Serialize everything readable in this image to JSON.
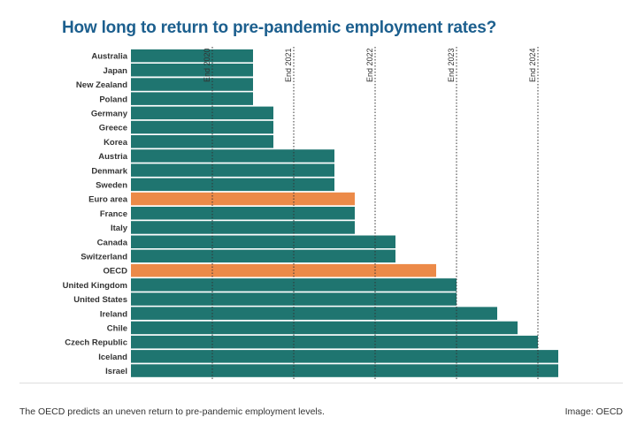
{
  "title": "How long to return to pre-pandemic employment rates?",
  "caption": "The OECD predicts an uneven return to pre-pandemic employment levels.",
  "credit": "Image: OECD",
  "colors": {
    "bar": "#1f7570",
    "highlight": "#ec8a48",
    "refline": "#333333",
    "label": "#333333"
  },
  "chart_data": {
    "type": "bar",
    "orientation": "horizontal",
    "title": "How long to return to pre-pandemic employment rates?",
    "xlabel": "",
    "ylabel": "",
    "grid": false,
    "legend": "none",
    "xlim": [
      "End 2019",
      "End 2024 + 6 months"
    ],
    "reference_lines": [
      {
        "label": "End 2020",
        "value": "End 2020"
      },
      {
        "label": "End 2021",
        "value": "End 2021"
      },
      {
        "label": "End 2022",
        "value": "End 2022"
      },
      {
        "label": "End 2023",
        "value": "End 2023"
      },
      {
        "label": "End 2024",
        "value": "End 2024"
      }
    ],
    "categories": [
      "Australia",
      "Japan",
      "New Zealand",
      "Poland",
      "Germany",
      "Greece",
      "Korea",
      "Austria",
      "Denmark",
      "Sweden",
      "Euro area",
      "France",
      "Italy",
      "Canada",
      "Switzerland",
      "OECD",
      "United Kingdom",
      "United States",
      "Ireland",
      "Chile",
      "Czech Republic",
      "Iceland",
      "Israel"
    ],
    "values": [
      "Q2 2021",
      "Q2 2021",
      "Q2 2021",
      "Q2 2021",
      "Q3 2021",
      "Q3 2021",
      "Q3 2021",
      "Q2 2022",
      "Q2 2022",
      "Q2 2022",
      "Q3 2022",
      "Q3 2022",
      "Q3 2022",
      "Q1 2023",
      "Q1 2023",
      "Q3 2023",
      "Q4 2023",
      "Q4 2023",
      "Q2 2024",
      "Q3 2024",
      "Q4 2024",
      "Q1 2025",
      "Q1 2025"
    ],
    "highlighted": [
      "Euro area",
      "OECD"
    ]
  }
}
